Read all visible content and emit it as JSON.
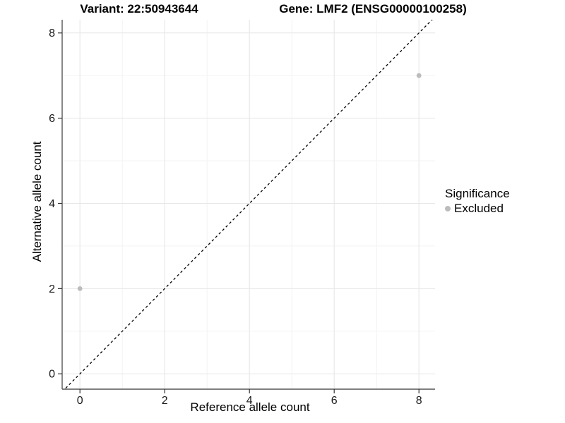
{
  "titles": {
    "variant": "Variant: 22:50943644",
    "gene": "Gene: LMF2 (ENSG00000100258)"
  },
  "colors": {
    "point": "#bcbcbc",
    "grid_major": "#e7e7e7",
    "grid_minor": "#f2f2f2",
    "axis_line": "#555555",
    "tick_mark": "#333333",
    "tick_label": "#1a1a1a",
    "identity_line": "#000000",
    "background": "#ffffff"
  },
  "chart_data": {
    "type": "scatter",
    "title_left": "Variant: 22:50943644",
    "title_right": "Gene: LMF2 (ENSG00000100258)",
    "xlabel": "Reference allele count",
    "ylabel": "Alternative allele count",
    "xlim": [
      -0.42,
      8.38
    ],
    "ylim": [
      -0.36,
      8.31
    ],
    "x_ticks": [
      0,
      2,
      4,
      6,
      8
    ],
    "y_ticks": [
      0,
      2,
      4,
      6,
      8
    ],
    "minor_gridlines": [
      1,
      3,
      5,
      7
    ],
    "grid": true,
    "points": [
      {
        "x": 0,
        "y": 2,
        "series": "Excluded"
      },
      {
        "x": 8,
        "y": 7,
        "series": "Excluded"
      }
    ],
    "identity_line": {
      "slope": 1,
      "intercept": 0,
      "style": "dashed"
    },
    "legend": {
      "title": "Significance",
      "position": "right",
      "items": [
        {
          "label": "Excluded",
          "color": "#bcbcbc"
        }
      ]
    }
  }
}
